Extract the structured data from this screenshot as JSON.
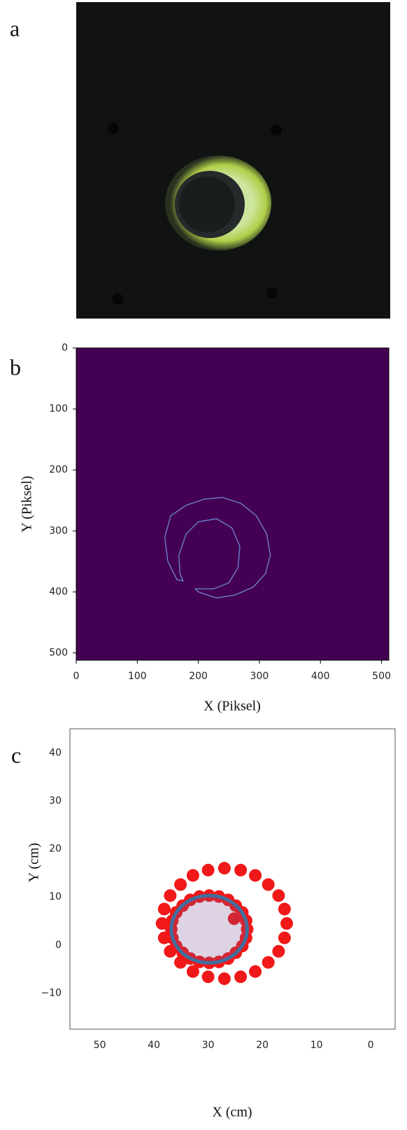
{
  "panel_labels": [
    "a",
    "b",
    "c"
  ],
  "chart_data": [
    {
      "type": "image",
      "background": "#440154",
      "xlabel": "X (Piksel)",
      "ylabel": "Y (Piksel)",
      "xlim": [
        0,
        512
      ],
      "ylim": [
        512,
        0
      ],
      "xticks": [
        0,
        100,
        200,
        300,
        400,
        500
      ],
      "yticks": [
        0,
        100,
        200,
        300,
        400,
        500
      ],
      "series": [
        {
          "color": "#6a7fc8",
          "x": [
            165,
            150,
            145,
            155,
            180,
            210,
            240,
            270,
            295,
            312,
            318,
            310,
            290,
            260,
            230,
            200,
            195,
            225,
            250,
            265,
            268,
            255,
            230,
            200,
            180,
            168,
            170,
            175
          ],
          "y": [
            380,
            350,
            310,
            275,
            258,
            248,
            245,
            255,
            275,
            305,
            340,
            370,
            392,
            405,
            410,
            400,
            395,
            395,
            385,
            360,
            325,
            295,
            280,
            285,
            305,
            340,
            370,
            382
          ]
        }
      ]
    },
    {
      "type": "scatter",
      "xlabel": "X (cm)",
      "ylabel": "Y (cm)",
      "xlim": [
        55.5,
        -4.5
      ],
      "ylim": [
        -17.5,
        45
      ],
      "xticks": [
        50,
        40,
        30,
        20,
        10,
        0
      ],
      "yticks": [
        {
          "value": -10,
          "label": "−10"
        },
        0,
        10,
        20,
        30,
        40
      ],
      "series": [
        {
          "color": "#f01818",
          "x": [
            38.5,
            38.1,
            37.0,
            35.1,
            32.8,
            30.0,
            27.0,
            24.0,
            21.3,
            18.9,
            17.0,
            15.9,
            15.5,
            15.9,
            17.0,
            18.9,
            21.3,
            24.0,
            27.0,
            30.0,
            32.8,
            35.1,
            37.0,
            38.1,
            36.8,
            36.6,
            35.9,
            34.7,
            33.3,
            31.6,
            29.8,
            28.0,
            26.3,
            24.9,
            23.7,
            23.0,
            22.8,
            23.0,
            23.7,
            24.9,
            26.3,
            28.0,
            29.8,
            31.6,
            33.3,
            34.7,
            35.9,
            36.6,
            25.2
          ],
          "y": [
            4.5,
            7.5,
            10.3,
            12.6,
            14.5,
            15.6,
            16.0,
            15.6,
            14.5,
            12.6,
            10.3,
            7.5,
            4.5,
            1.5,
            -1.3,
            -3.6,
            -5.5,
            -6.6,
            -7.0,
            -6.6,
            -5.5,
            -3.6,
            -1.3,
            1.5,
            3.3,
            5.1,
            6.8,
            8.2,
            9.4,
            10.1,
            10.3,
            10.1,
            9.4,
            8.2,
            6.8,
            5.1,
            3.3,
            1.5,
            -0.2,
            -1.6,
            -2.8,
            -3.5,
            -3.7,
            -3.5,
            -2.8,
            -1.6,
            -0.2,
            1.5,
            5.5
          ]
        }
      ],
      "circle": {
        "color": "#3f6fa0",
        "center": [
          29.8,
          3.3
        ],
        "radius": 7
      }
    }
  ]
}
